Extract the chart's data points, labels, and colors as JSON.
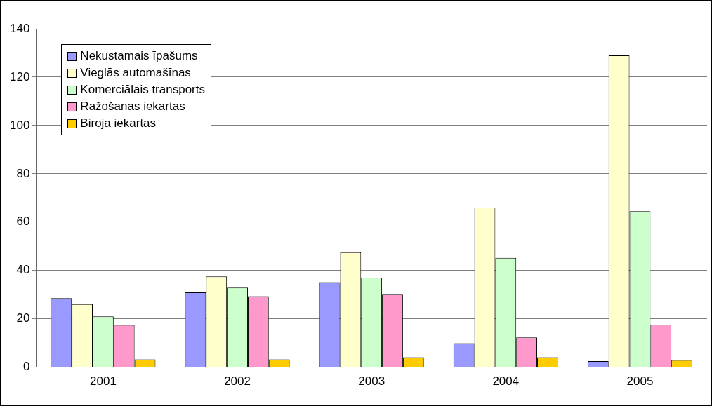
{
  "chart_data": {
    "type": "bar",
    "categories": [
      "2001",
      "2002",
      "2003",
      "2004",
      "2005"
    ],
    "series": [
      {
        "name": "Nekustamais īpašums",
        "color": "#9999ff",
        "values": [
          28.5,
          30.9,
          35.1,
          9.9,
          2.5
        ]
      },
      {
        "name": "Vieglās automašīnas",
        "color": "#ffffcc",
        "values": [
          26.1,
          37.5,
          47.5,
          66.0,
          129.0
        ]
      },
      {
        "name": "Komerciālais transports",
        "color": "#ccffcc",
        "values": [
          21.0,
          32.9,
          37.0,
          45.2,
          64.5
        ]
      },
      {
        "name": "Ražošanas iekārtas",
        "color": "#ff99cc",
        "values": [
          17.4,
          29.3,
          30.3,
          12.3,
          17.5
        ]
      },
      {
        "name": "Biroja iekārtas",
        "color": "#ffcc00",
        "values": [
          3.2,
          3.2,
          4.1,
          4.1,
          2.9
        ]
      }
    ],
    "ylim": [
      0,
      140
    ],
    "yticks": [
      0,
      20,
      40,
      60,
      80,
      100,
      120,
      140
    ],
    "grid": "y",
    "legend": "top left"
  }
}
